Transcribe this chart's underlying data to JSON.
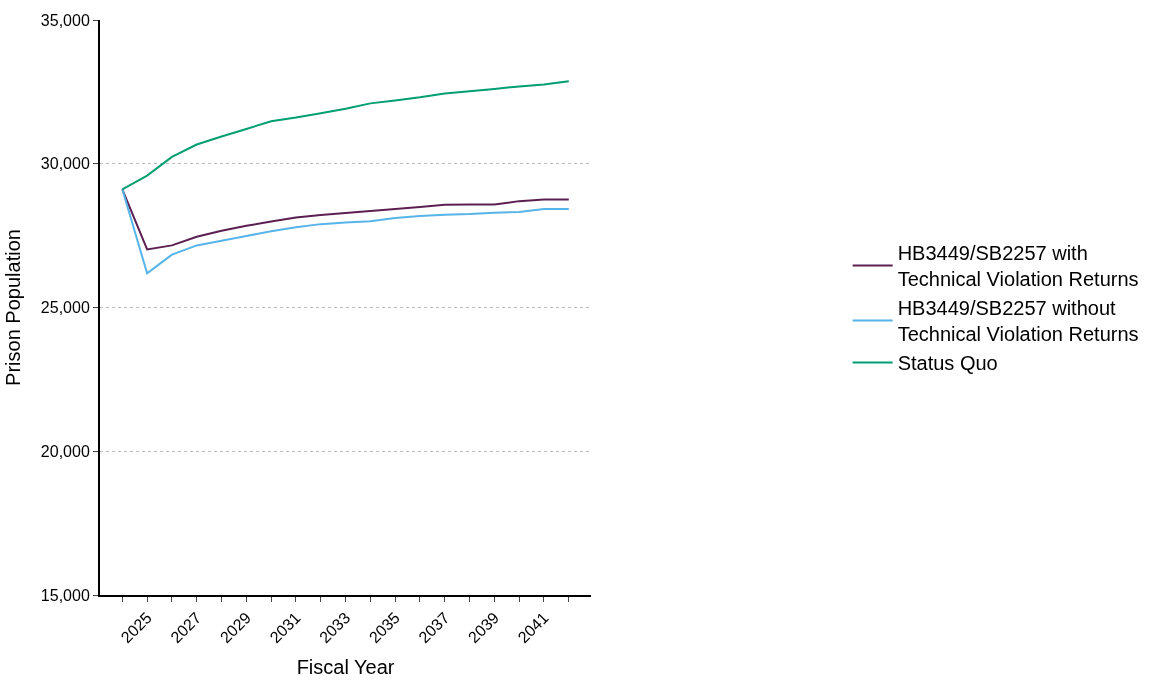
{
  "chart_data": {
    "type": "line",
    "xlabel": "Fiscal Year",
    "ylabel": "Prison Population",
    "x": [
      2024,
      2025,
      2026,
      2027,
      2028,
      2029,
      2030,
      2031,
      2032,
      2033,
      2034,
      2035,
      2036,
      2037,
      2038,
      2039,
      2040,
      2041,
      2042
    ],
    "series": [
      {
        "name": "HB3449/SB2257 with Technical Violation Returns",
        "color": "#5c1f52",
        "values": [
          29110,
          27020,
          27160,
          27460,
          27670,
          27840,
          27990,
          28130,
          28220,
          28290,
          28360,
          28430,
          28500,
          28570,
          28580,
          28580,
          28700,
          28760,
          28760
        ]
      },
      {
        "name": "HB3449/SB2257 without Technical Violation Returns",
        "color": "#56b4e9",
        "values": [
          29110,
          26190,
          26840,
          27160,
          27320,
          27490,
          27650,
          27790,
          27900,
          27960,
          28000,
          28110,
          28180,
          28230,
          28250,
          28300,
          28320,
          28430,
          28430
        ]
      },
      {
        "name": "Status Quo",
        "color": "#009e73",
        "values": [
          29110,
          29590,
          30240,
          30670,
          30950,
          31210,
          31480,
          31610,
          31760,
          31910,
          32100,
          32200,
          32310,
          32440,
          32520,
          32600,
          32690,
          32760,
          32870
        ]
      }
    ],
    "xlim": [
      2023.1,
      2042.9
    ],
    "xticks": [
      {
        "value": 2024,
        "label": null
      },
      2025,
      {
        "value": 2026,
        "label": null
      },
      2027,
      {
        "value": 2028,
        "label": null
      },
      2029,
      {
        "value": 2030,
        "label": null
      },
      2031,
      {
        "value": 2032,
        "label": null
      },
      2033,
      {
        "value": 2034,
        "label": null
      },
      2035,
      {
        "value": 2036,
        "label": null
      },
      2037,
      {
        "value": 2038,
        "label": null
      },
      2039,
      {
        "value": 2040,
        "label": null
      },
      2041,
      {
        "value": 2042,
        "label": null
      }
    ],
    "ylim": [
      15000,
      35000
    ],
    "yticks": [
      {
        "value": 15000,
        "label": "15,000"
      },
      {
        "value": 20000,
        "label": "20,000"
      },
      {
        "value": 25000,
        "label": "25,000"
      },
      {
        "value": 30000,
        "label": "30,000"
      },
      {
        "value": 35000,
        "label": "35,000"
      }
    ],
    "grid": "y",
    "legend": "right",
    "marker": "none",
    "line_style": "solid"
  }
}
